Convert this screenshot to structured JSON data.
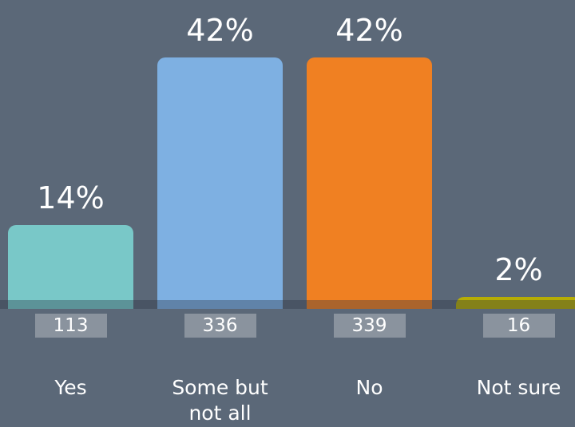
{
  "chart_data": {
    "type": "bar",
    "categories": [
      "Yes",
      "Some but not all",
      "No",
      "Not sure"
    ],
    "values": [
      14,
      42,
      42,
      2
    ],
    "value_labels": [
      "14%",
      "42%",
      "42%",
      "2%"
    ],
    "counts": [
      113,
      336,
      339,
      16
    ],
    "colors": [
      "#79c8c8",
      "#7eb0e2",
      "#f08022",
      "#b6ad05"
    ]
  }
}
